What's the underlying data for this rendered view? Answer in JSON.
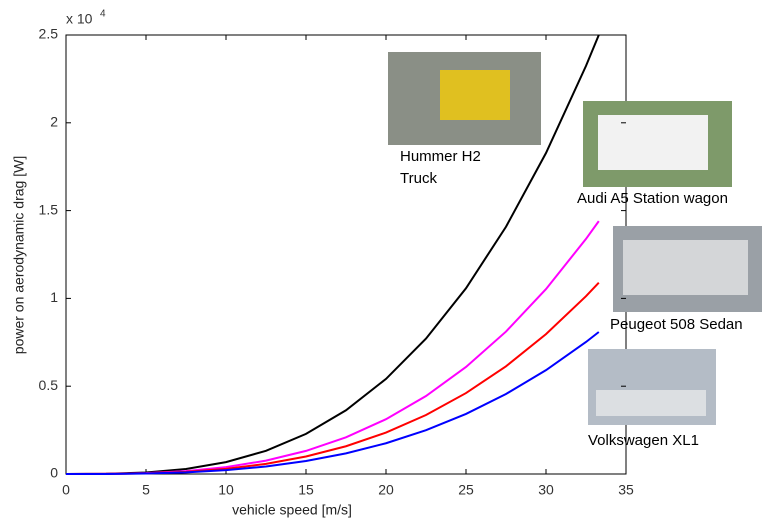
{
  "chart_data": {
    "type": "line",
    "x_label": "vehicle speed [m/s]",
    "y_label": "power on aerodynamic drag [W]",
    "y_multiplier": "x 10",
    "y_multiplier_exponent": "4",
    "x": [
      0,
      2.5,
      5,
      7.5,
      10,
      12.5,
      15,
      17.5,
      20,
      22.5,
      25,
      27.5,
      30,
      32.5,
      33.3
    ],
    "series": [
      {
        "color": "#000000",
        "values": [
          0,
          11,
          85,
          286,
          677,
          1322,
          2285,
          3628,
          5416,
          7712,
          10578,
          14080,
          18279,
          23240,
          25000
        ]
      },
      {
        "color": "#ff00ff",
        "values": [
          0,
          6,
          49,
          165,
          390,
          762,
          1316,
          2090,
          3120,
          4442,
          6094,
          8111,
          10530,
          13388,
          14401
        ]
      },
      {
        "color": "#ff0000",
        "values": [
          0,
          5,
          37,
          124,
          295,
          576,
          996,
          1581,
          2360,
          3360,
          4609,
          6135,
          7965,
          10127,
          10893
        ]
      },
      {
        "color": "#0000ff",
        "values": [
          0,
          3,
          27,
          92,
          219,
          428,
          739,
          1174,
          1752,
          2495,
          3422,
          4555,
          5913,
          7518,
          8087
        ]
      }
    ],
    "xlim": [
      0,
      35
    ],
    "xticks": [
      0,
      5,
      10,
      15,
      20,
      25,
      30,
      35
    ],
    "ylim": [
      0,
      25000
    ],
    "yticks": [
      {
        "value": 0,
        "label": "0"
      },
      {
        "value": 5000,
        "label": "0.5"
      },
      {
        "value": 10000,
        "label": "1"
      },
      {
        "value": 15000,
        "label": "1.5"
      },
      {
        "value": 20000,
        "label": "2"
      },
      {
        "value": 25000,
        "label": "2.5"
      }
    ],
    "annotations": [
      "Hummer H2",
      "Truck",
      "Audi A5 Station wagon",
      "Peugeot 508 Sedan",
      "Volkswagen XL1"
    ]
  }
}
